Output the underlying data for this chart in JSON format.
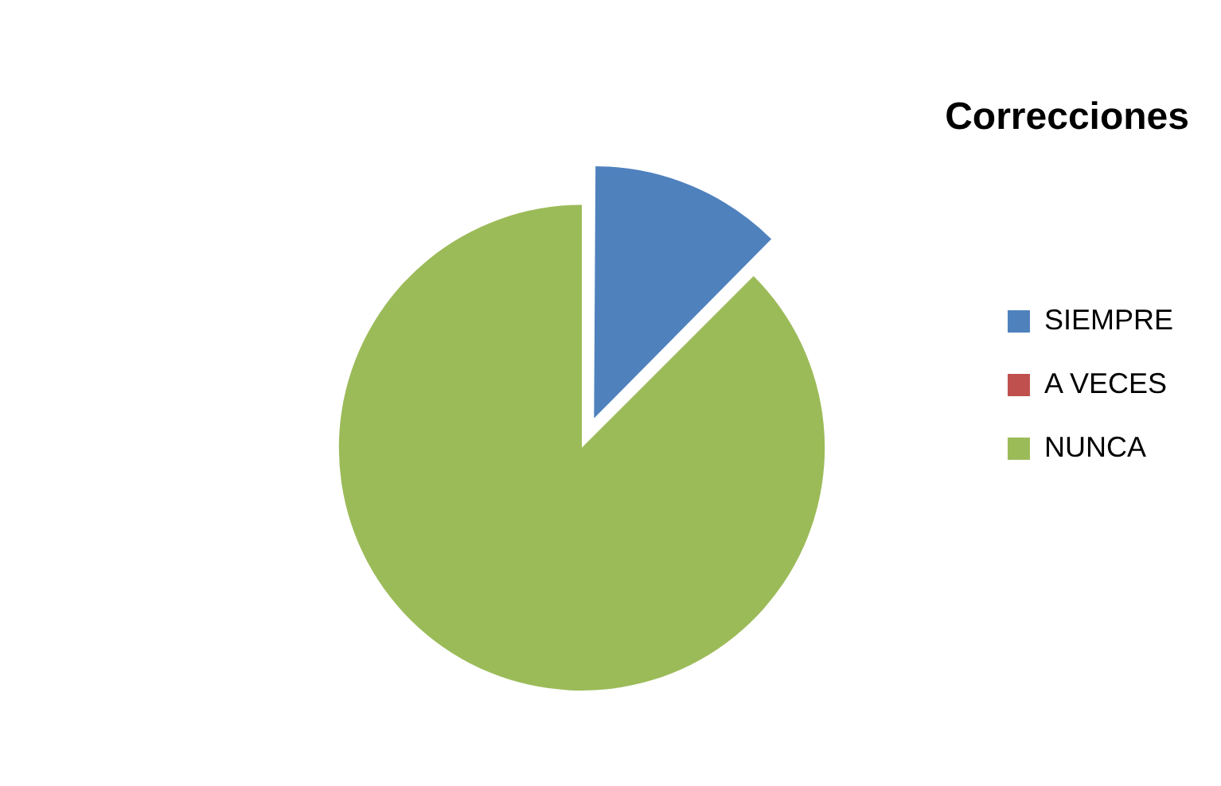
{
  "chart_data": {
    "type": "pie",
    "title": "Correcciones",
    "categories": [
      "SIEMPRE",
      "A VECES",
      "NUNCA"
    ],
    "values": [
      12.5,
      0,
      87.5
    ],
    "colors": [
      "#4f81bd",
      "#c0504d",
      "#9bbb59"
    ],
    "legend": "right"
  }
}
